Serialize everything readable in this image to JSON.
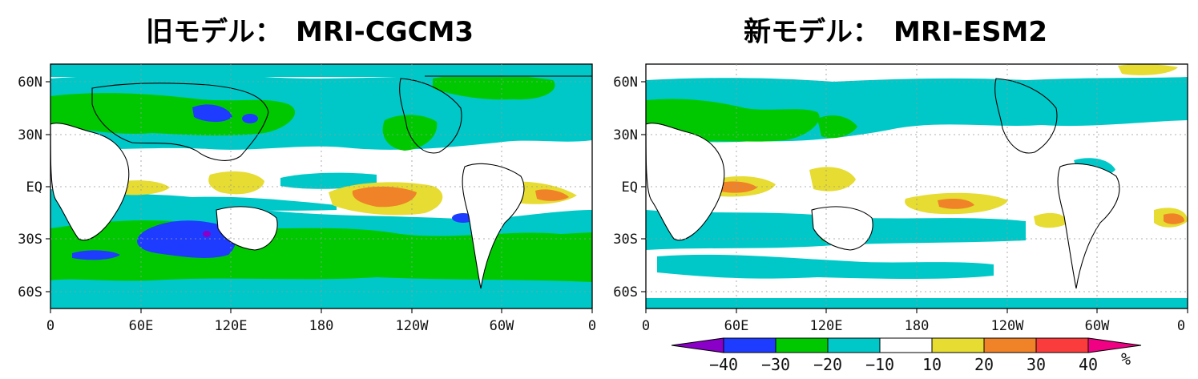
{
  "titles": {
    "left": "旧モデル：　MRI-CGCM3",
    "right": "新モデル：　MRI-ESM2"
  },
  "axes": {
    "x_ticks": [
      "0",
      "60E",
      "120E",
      "180",
      "120W",
      "60W",
      "0"
    ],
    "y_ticks": [
      "60N",
      "30N",
      "EQ",
      "30S",
      "60S"
    ]
  },
  "colorbar": {
    "levels": [
      "−40",
      "−30",
      "−20",
      "−10",
      "10",
      "20",
      "30",
      "40"
    ],
    "unit": "%",
    "colors": {
      "lt_-40": "#8a00c8",
      "-40_-30": "#1e3cff",
      "-30_-20": "#00c800",
      "-20_-10": "#00c8c8",
      "-10_10": "#ffffff",
      "10_20": "#e6dc32",
      "20_30": "#f08228",
      "30_40": "#fa3c3c",
      "gt_40": "#f00082"
    }
  }
}
